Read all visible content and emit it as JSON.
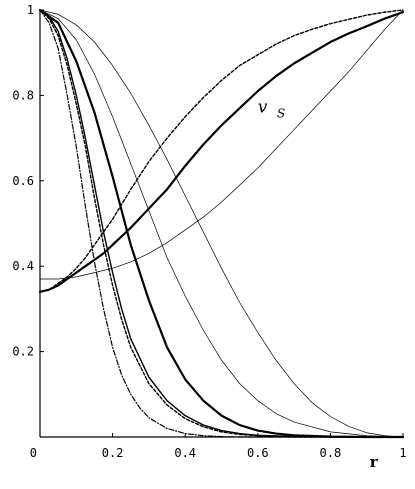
{
  "chart_data": {
    "type": "line",
    "title": "",
    "xlabel": "r",
    "ylabel": "",
    "xlim": [
      0,
      1
    ],
    "ylim": [
      0,
      1
    ],
    "grid": false,
    "legend": "none",
    "x_ticks": [
      {
        "value": 0,
        "label": "0"
      },
      {
        "value": 0.2,
        "label": "0.2"
      },
      {
        "value": 0.4,
        "label": "0.4"
      },
      {
        "value": 0.6,
        "label": "0.6"
      },
      {
        "value": 0.8,
        "label": "0.8"
      },
      {
        "value": 1,
        "label": "1"
      }
    ],
    "y_ticks": [
      {
        "value": 0,
        "label": "0"
      },
      {
        "value": 0.2,
        "label": "0.2"
      },
      {
        "value": 0.4,
        "label": "0.4"
      },
      {
        "value": 0.6,
        "label": "0.6"
      },
      {
        "value": 0.8,
        "label": "0.8"
      },
      {
        "value": 1,
        "label": "1"
      }
    ],
    "annotation": {
      "text": "v",
      "subscript": "S",
      "x": 0.6,
      "y": 0.76
    },
    "series": [
      {
        "style": "dashdot",
        "x": [
          0,
          0.025,
          0.05,
          0.075,
          0.1,
          0.125,
          0.15,
          0.175,
          0.2,
          0.225,
          0.25,
          0.275,
          0.3,
          0.35,
          0.4,
          0.45,
          0.5,
          0.55,
          0.6,
          0.7,
          0.8,
          0.9,
          1.0
        ],
        "y": [
          1.0,
          0.97,
          0.91,
          0.8,
          0.68,
          0.54,
          0.41,
          0.3,
          0.21,
          0.145,
          0.1,
          0.068,
          0.045,
          0.02,
          0.008,
          0.003,
          0.001,
          0.0,
          0.0,
          0.0,
          0.0,
          0.0,
          0.0
        ]
      },
      {
        "style": "dashed",
        "x": [
          0,
          0.025,
          0.05,
          0.075,
          0.1,
          0.125,
          0.15,
          0.175,
          0.2,
          0.225,
          0.25,
          0.3,
          0.35,
          0.4,
          0.45,
          0.5,
          0.55,
          0.6,
          0.7,
          0.8,
          0.9,
          1.0
        ],
        "y": [
          1.0,
          0.98,
          0.94,
          0.87,
          0.78,
          0.68,
          0.56,
          0.45,
          0.355,
          0.275,
          0.21,
          0.125,
          0.075,
          0.043,
          0.024,
          0.012,
          0.006,
          0.003,
          0.0,
          0.0,
          0.0,
          0.0
        ]
      },
      {
        "style": "solid",
        "weight": "medium",
        "x": [
          0,
          0.025,
          0.05,
          0.075,
          0.1,
          0.125,
          0.15,
          0.175,
          0.2,
          0.225,
          0.25,
          0.3,
          0.35,
          0.4,
          0.45,
          0.5,
          0.55,
          0.6,
          0.7,
          0.8,
          0.9,
          1.0
        ],
        "y": [
          1.0,
          0.985,
          0.95,
          0.885,
          0.8,
          0.7,
          0.59,
          0.48,
          0.385,
          0.3,
          0.23,
          0.14,
          0.085,
          0.05,
          0.028,
          0.015,
          0.008,
          0.004,
          0.001,
          0.0,
          0.0,
          0.0
        ]
      },
      {
        "style": "solid",
        "weight": "bold",
        "x": [
          0,
          0.05,
          0.1,
          0.15,
          0.2,
          0.25,
          0.3,
          0.35,
          0.4,
          0.45,
          0.5,
          0.55,
          0.6,
          0.65,
          0.7,
          0.8,
          0.9,
          1.0
        ],
        "y": [
          1.0,
          0.97,
          0.88,
          0.76,
          0.61,
          0.45,
          0.32,
          0.21,
          0.135,
          0.085,
          0.05,
          0.028,
          0.015,
          0.008,
          0.004,
          0.001,
          0.0,
          0.0
        ]
      },
      {
        "style": "solid",
        "weight": "thin",
        "x": [
          0,
          0.05,
          0.1,
          0.15,
          0.2,
          0.25,
          0.3,
          0.35,
          0.4,
          0.45,
          0.5,
          0.55,
          0.6,
          0.65,
          0.7,
          0.8,
          0.9,
          1.0
        ],
        "y": [
          1.0,
          0.98,
          0.93,
          0.85,
          0.75,
          0.64,
          0.53,
          0.42,
          0.33,
          0.25,
          0.18,
          0.125,
          0.085,
          0.055,
          0.035,
          0.012,
          0.003,
          0.0
        ]
      },
      {
        "style": "solid",
        "weight": "thin",
        "x": [
          0,
          0.05,
          0.1,
          0.15,
          0.2,
          0.25,
          0.3,
          0.35,
          0.4,
          0.45,
          0.5,
          0.55,
          0.6,
          0.65,
          0.7,
          0.75,
          0.8,
          0.85,
          0.9,
          0.95,
          1.0
        ],
        "y": [
          1.0,
          0.99,
          0.965,
          0.925,
          0.87,
          0.805,
          0.73,
          0.65,
          0.565,
          0.48,
          0.395,
          0.315,
          0.245,
          0.18,
          0.125,
          0.08,
          0.048,
          0.025,
          0.01,
          0.003,
          0.0
        ]
      },
      {
        "style": "solid",
        "weight": "bold",
        "label": "vS",
        "x": [
          0,
          0.025,
          0.05,
          0.075,
          0.1,
          0.125,
          0.15,
          0.175,
          0.2,
          0.25,
          0.3,
          0.35,
          0.4,
          0.45,
          0.5,
          0.55,
          0.6,
          0.65,
          0.7,
          0.75,
          0.8,
          0.85,
          0.9,
          0.95,
          1.0
        ],
        "y": [
          0.34,
          0.345,
          0.355,
          0.37,
          0.385,
          0.4,
          0.415,
          0.43,
          0.45,
          0.49,
          0.535,
          0.58,
          0.635,
          0.685,
          0.73,
          0.77,
          0.81,
          0.845,
          0.875,
          0.9,
          0.925,
          0.945,
          0.962,
          0.98,
          0.995
        ]
      },
      {
        "style": "dashed",
        "label": "vS",
        "x": [
          0,
          0.025,
          0.05,
          0.075,
          0.1,
          0.125,
          0.15,
          0.175,
          0.2,
          0.25,
          0.3,
          0.35,
          0.4,
          0.45,
          0.5,
          0.55,
          0.6,
          0.65,
          0.7,
          0.75,
          0.8,
          0.85,
          0.9,
          0.95,
          1.0
        ],
        "y": [
          0.34,
          0.345,
          0.36,
          0.375,
          0.395,
          0.42,
          0.45,
          0.48,
          0.51,
          0.58,
          0.645,
          0.7,
          0.75,
          0.795,
          0.835,
          0.87,
          0.895,
          0.92,
          0.94,
          0.955,
          0.968,
          0.978,
          0.988,
          0.995,
          1.0
        ]
      },
      {
        "style": "solid",
        "weight": "thin",
        "label": "vS",
        "x": [
          0,
          0.05,
          0.1,
          0.15,
          0.2,
          0.25,
          0.3,
          0.35,
          0.4,
          0.45,
          0.5,
          0.55,
          0.6,
          0.65,
          0.7,
          0.75,
          0.8,
          0.85,
          0.9,
          0.95,
          1.0
        ],
        "y": [
          0.37,
          0.37,
          0.375,
          0.385,
          0.395,
          0.41,
          0.43,
          0.455,
          0.485,
          0.515,
          0.55,
          0.59,
          0.63,
          0.675,
          0.72,
          0.765,
          0.81,
          0.855,
          0.905,
          0.955,
          1.0
        ]
      }
    ]
  }
}
